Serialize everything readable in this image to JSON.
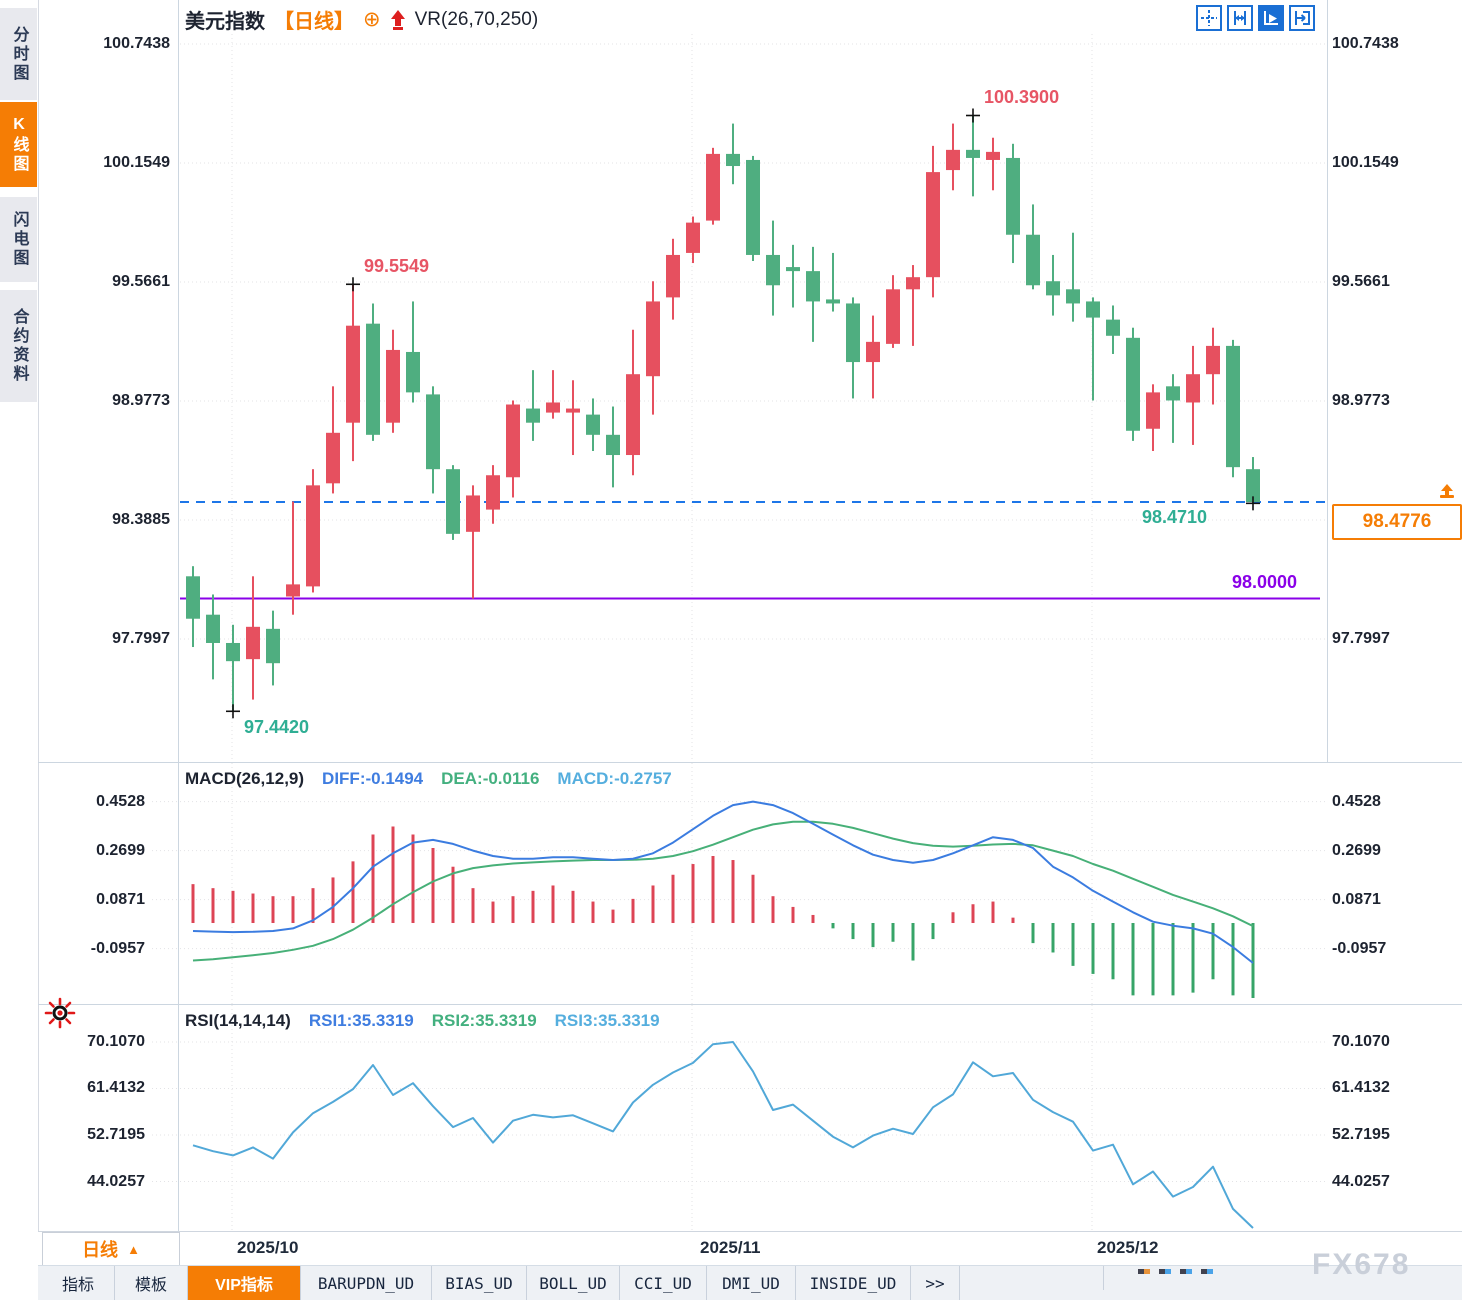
{
  "sidebar": {
    "tabs": [
      {
        "label": "分时图",
        "active": false
      },
      {
        "label": "K线图",
        "active": true
      },
      {
        "label": "闪电图",
        "active": false
      },
      {
        "label": "合约资料",
        "active": false
      }
    ]
  },
  "header": {
    "symbol": "美元指数",
    "period_tag": "【日线】",
    "add_icon": "⊕",
    "overlay_indicator": "VR(26,70,250)"
  },
  "toolbar": {
    "icons": [
      "crosshair-icon",
      "axis-range-icon",
      "auto-scale-icon",
      "jump-to-latest-icon"
    ]
  },
  "colors": {
    "up_candle": "#e6505f",
    "down_candle": "#4fae80",
    "hist_up": "#dd4455",
    "hist_down": "#37a468",
    "diff_line": "#3b7ce0",
    "dea_line": "#47b078",
    "rsi_line": "#51a8d8",
    "last_price_dash": "#1d76e8",
    "support_line": "#8a00e8",
    "accent_orange": "#f57d05",
    "annotation_red": "#e75565",
    "annotation_teal": "#2fae94",
    "grid": "#e3e3e6"
  },
  "chart_data": [
    {
      "type": "candlestick",
      "title": "美元指数 日线",
      "y_ticks": [
        "100.7438",
        "100.1549",
        "99.5661",
        "98.9773",
        "98.3885",
        "97.7997"
      ],
      "x_labels": [
        "2025/10",
        "2025/11",
        "2025/12"
      ],
      "annotations": {
        "swing_high_1": "99.5549",
        "swing_high_2": "100.3900",
        "swing_low": "97.4420",
        "last_low": "98.4710",
        "support_level": "98.0000",
        "last_price": "98.4776"
      },
      "last_price_value": 98.4776,
      "support_value": 98.0,
      "candles": [
        [
          98.11,
          98.16,
          97.76,
          97.9
        ],
        [
          97.92,
          98.02,
          97.6,
          97.78
        ],
        [
          97.78,
          97.87,
          97.442,
          97.69
        ],
        [
          97.7,
          98.11,
          97.5,
          97.86
        ],
        [
          97.85,
          97.94,
          97.57,
          97.68
        ],
        [
          98.01,
          98.48,
          97.92,
          98.07
        ],
        [
          98.06,
          98.64,
          98.03,
          98.56
        ],
        [
          98.57,
          99.05,
          98.52,
          98.82
        ],
        [
          98.87,
          99.5549,
          98.68,
          99.35
        ],
        [
          99.36,
          99.46,
          98.78,
          98.81
        ],
        [
          98.87,
          99.33,
          98.82,
          99.23
        ],
        [
          99.22,
          99.47,
          98.97,
          99.02
        ],
        [
          99.01,
          99.05,
          98.52,
          98.64
        ],
        [
          98.64,
          98.66,
          98.29,
          98.32
        ],
        [
          98.33,
          98.56,
          98.0,
          98.51
        ],
        [
          98.44,
          98.66,
          98.37,
          98.61
        ],
        [
          98.6,
          98.98,
          98.5,
          98.96
        ],
        [
          98.94,
          99.13,
          98.78,
          98.87
        ],
        [
          98.92,
          99.13,
          98.89,
          98.97
        ],
        [
          98.92,
          99.08,
          98.71,
          98.94
        ],
        [
          98.91,
          98.99,
          98.73,
          98.81
        ],
        [
          98.81,
          98.95,
          98.55,
          98.71
        ],
        [
          98.71,
          99.33,
          98.61,
          99.11
        ],
        [
          99.1,
          99.57,
          98.91,
          99.47
        ],
        [
          99.49,
          99.78,
          99.38,
          99.7
        ],
        [
          99.71,
          99.89,
          99.66,
          99.86
        ],
        [
          99.87,
          100.23,
          99.85,
          100.2
        ],
        [
          100.2,
          100.35,
          100.05,
          100.14
        ],
        [
          100.17,
          100.19,
          99.67,
          99.7
        ],
        [
          99.7,
          99.87,
          99.4,
          99.55
        ],
        [
          99.64,
          99.75,
          99.44,
          99.62
        ],
        [
          99.62,
          99.74,
          99.27,
          99.47
        ],
        [
          99.48,
          99.71,
          99.42,
          99.46
        ],
        [
          99.46,
          99.49,
          98.99,
          99.17
        ],
        [
          99.17,
          99.4,
          98.99,
          99.27
        ],
        [
          99.26,
          99.6,
          99.24,
          99.53
        ],
        [
          99.53,
          99.65,
          99.25,
          99.59
        ],
        [
          99.59,
          100.24,
          99.49,
          100.11
        ],
        [
          100.12,
          100.35,
          100.02,
          100.22
        ],
        [
          100.22,
          100.39,
          99.99,
          100.18
        ],
        [
          100.17,
          100.28,
          100.02,
          100.21
        ],
        [
          100.18,
          100.25,
          99.66,
          99.8
        ],
        [
          99.8,
          99.95,
          99.53,
          99.55
        ],
        [
          99.57,
          99.7,
          99.4,
          99.5
        ],
        [
          99.53,
          99.81,
          99.37,
          99.46
        ],
        [
          99.47,
          99.49,
          98.98,
          99.39
        ],
        [
          99.38,
          99.45,
          99.21,
          99.3
        ],
        [
          99.29,
          99.34,
          98.78,
          98.83
        ],
        [
          98.84,
          99.06,
          98.73,
          99.02
        ],
        [
          99.05,
          99.11,
          98.77,
          98.98
        ],
        [
          98.97,
          99.25,
          98.76,
          99.11
        ],
        [
          99.11,
          99.34,
          98.96,
          99.25
        ],
        [
          99.25,
          99.28,
          98.6,
          98.65
        ],
        [
          98.64,
          98.7,
          98.471,
          98.4776
        ]
      ]
    },
    {
      "type": "macd",
      "header": {
        "name": "MACD(26,12,9)",
        "diff": "DIFF:-0.1494",
        "dea": "DEA:-0.0116",
        "macd": "MACD:-0.2757"
      },
      "y_ticks": [
        "0.4528",
        "0.2699",
        "0.0871",
        "-0.0957"
      ],
      "diff": [
        -0.03,
        -0.032,
        -0.034,
        -0.033,
        -0.03,
        -0.02,
        0.01,
        0.06,
        0.13,
        0.21,
        0.26,
        0.3,
        0.31,
        0.295,
        0.27,
        0.25,
        0.24,
        0.24,
        0.245,
        0.245,
        0.24,
        0.235,
        0.24,
        0.26,
        0.3,
        0.35,
        0.4,
        0.44,
        0.453,
        0.44,
        0.41,
        0.37,
        0.33,
        0.29,
        0.255,
        0.235,
        0.225,
        0.235,
        0.26,
        0.29,
        0.32,
        0.31,
        0.28,
        0.21,
        0.17,
        0.12,
        0.08,
        0.04,
        0.005,
        -0.01,
        -0.02,
        -0.04,
        -0.09,
        -0.1494
      ],
      "dea": [
        -0.14,
        -0.135,
        -0.128,
        -0.12,
        -0.112,
        -0.1,
        -0.085,
        -0.06,
        -0.025,
        0.02,
        0.07,
        0.115,
        0.155,
        0.185,
        0.205,
        0.215,
        0.222,
        0.226,
        0.23,
        0.233,
        0.235,
        0.235,
        0.236,
        0.24,
        0.25,
        0.268,
        0.292,
        0.32,
        0.348,
        0.368,
        0.378,
        0.378,
        0.37,
        0.355,
        0.335,
        0.315,
        0.298,
        0.288,
        0.285,
        0.288,
        0.293,
        0.295,
        0.29,
        0.27,
        0.25,
        0.22,
        0.195,
        0.165,
        0.135,
        0.105,
        0.08,
        0.055,
        0.025,
        -0.0116
      ],
      "hist": [
        0.145,
        0.13,
        0.12,
        0.11,
        0.1,
        0.1,
        0.13,
        0.17,
        0.23,
        0.33,
        0.36,
        0.33,
        0.28,
        0.21,
        0.13,
        0.08,
        0.1,
        0.12,
        0.14,
        0.12,
        0.08,
        0.05,
        0.09,
        0.14,
        0.18,
        0.22,
        0.25,
        0.235,
        0.18,
        0.1,
        0.06,
        0.03,
        -0.02,
        -0.06,
        -0.09,
        -0.07,
        -0.14,
        -0.06,
        0.04,
        0.07,
        0.08,
        0.02,
        -0.075,
        -0.11,
        -0.16,
        -0.19,
        -0.21,
        -0.27,
        -0.27,
        -0.27,
        -0.26,
        -0.21,
        -0.27,
        -0.28
      ]
    },
    {
      "type": "rsi",
      "header": {
        "name": "RSI(14,14,14)",
        "rsi1": "RSI1:35.3319",
        "rsi2": "RSI2:35.3319",
        "rsi3": "RSI3:35.3319"
      },
      "y_ticks": [
        "70.1070",
        "61.4132",
        "52.7195",
        "44.0257"
      ],
      "rsi": [
        50.8,
        49.7,
        48.9,
        50.4,
        48.3,
        53.2,
        56.8,
        58.9,
        61.3,
        65.8,
        60.2,
        62.4,
        58.1,
        54.2,
        55.9,
        51.3,
        55.4,
        56.5,
        56.0,
        56.4,
        54.9,
        53.4,
        58.8,
        62.1,
        64.4,
        66.2,
        69.7,
        70.1,
        64.6,
        57.4,
        58.4,
        55.4,
        52.4,
        50.4,
        52.6,
        53.9,
        52.9,
        57.9,
        60.3,
        66.3,
        63.7,
        64.3,
        59.3,
        57.0,
        55.2,
        49.8,
        50.9,
        43.5,
        45.9,
        41.2,
        43.0,
        46.8,
        38.9,
        35.3319
      ]
    }
  ],
  "bottom": {
    "period_label": "日线",
    "period_arrow": "▲",
    "x_axis_labels": [
      "2025/10",
      "2025/11",
      "2025/12"
    ],
    "tabs": [
      {
        "label": "指标",
        "active": false,
        "cn": true
      },
      {
        "label": "模板",
        "active": false,
        "cn": true
      },
      {
        "label": "VIP指标",
        "active": true,
        "cn": true
      },
      {
        "label": "BARUPDN_UD",
        "active": false,
        "cn": false
      },
      {
        "label": "BIAS_UD",
        "active": false,
        "cn": false
      },
      {
        "label": "BOLL_UD",
        "active": false,
        "cn": false
      },
      {
        "label": "CCI_UD",
        "active": false,
        "cn": false
      },
      {
        "label": "DMI_UD",
        "active": false,
        "cn": false
      },
      {
        "label": "INSIDE_UD",
        "active": false,
        "cn": false
      },
      {
        "label": ">>",
        "active": false,
        "cn": false
      }
    ],
    "watermark": "FX678"
  }
}
